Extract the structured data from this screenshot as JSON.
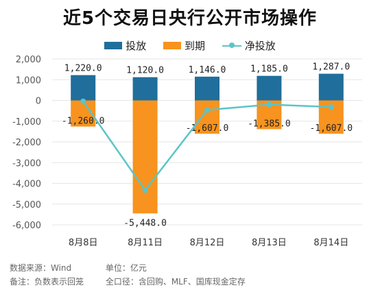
{
  "title": "近5个交易日央行公开市场操作",
  "legend": {
    "inject": "投放",
    "mature": "到期",
    "net": "净投放"
  },
  "colors": {
    "inject": "#1f6e9c",
    "mature": "#f7931e",
    "net": "#5bc4c8",
    "grid": "#e6e6e6",
    "axis": "#999999",
    "text": "#333333"
  },
  "chart_data": {
    "type": "bar",
    "title": "近5个交易日央行公开市场操作",
    "categories": [
      "8月8日",
      "8月11日",
      "8月12日",
      "8月13日",
      "8月14日"
    ],
    "series": [
      {
        "name": "投放",
        "values": [
          1220.0,
          1120.0,
          1146.0,
          1185.0,
          1287.0
        ]
      },
      {
        "name": "到期",
        "values": [
          -1260.0,
          -5448.0,
          -1607.0,
          -1385.0,
          -1607.0
        ]
      },
      {
        "name": "净投放",
        "type": "line",
        "values": [
          -40,
          -4328,
          -461,
          -200,
          -320
        ]
      }
    ],
    "inject_labels": [
      "1,220.0",
      "1,120.0",
      "1,146.0",
      "1,185.0",
      "1,287.0"
    ],
    "mature_labels": [
      "-1,260.0",
      "-5,448.0",
      "-1,607.0",
      "-1,385.0",
      "-1,607.0"
    ],
    "ylim": [
      -6000,
      2000
    ],
    "yticks": [
      2000,
      1000,
      0,
      -1000,
      -2000,
      -3000,
      -4000,
      -5000,
      -6000
    ],
    "ytick_labels": [
      "2,000",
      "1,000",
      "0",
      "-1,000",
      "-2,000",
      "-3,000",
      "-4,000",
      "-5,000",
      "-6,000"
    ],
    "grid": true,
    "legend_position": "top"
  },
  "footer": {
    "source": "数据来源：Wind",
    "unit": "单位：亿元",
    "note": "备注：负数表示回笼",
    "scope": "全口径：含回购、MLF、国库现金定存"
  }
}
